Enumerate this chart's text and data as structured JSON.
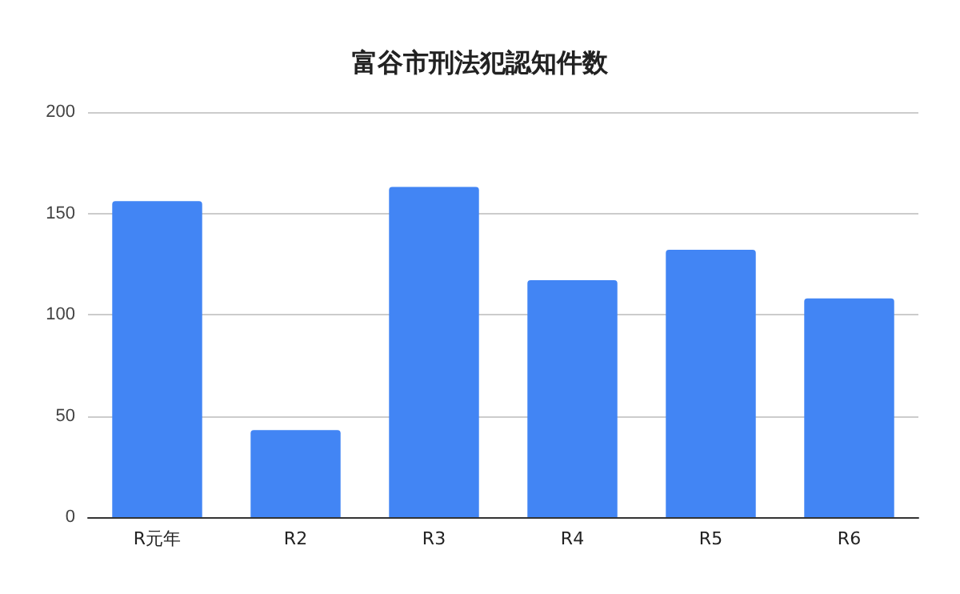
{
  "chart_data": {
    "type": "bar",
    "title": "富谷市刑法犯認知件数",
    "categories": [
      "R元年",
      "R2",
      "R3",
      "R4",
      "R5",
      "R6"
    ],
    "values": [
      156,
      43,
      163,
      117,
      132,
      108
    ],
    "color": "#4285f4",
    "ylim": [
      0,
      200
    ],
    "yticks": [
      0,
      50,
      100,
      150,
      200
    ],
    "grid": "y"
  }
}
